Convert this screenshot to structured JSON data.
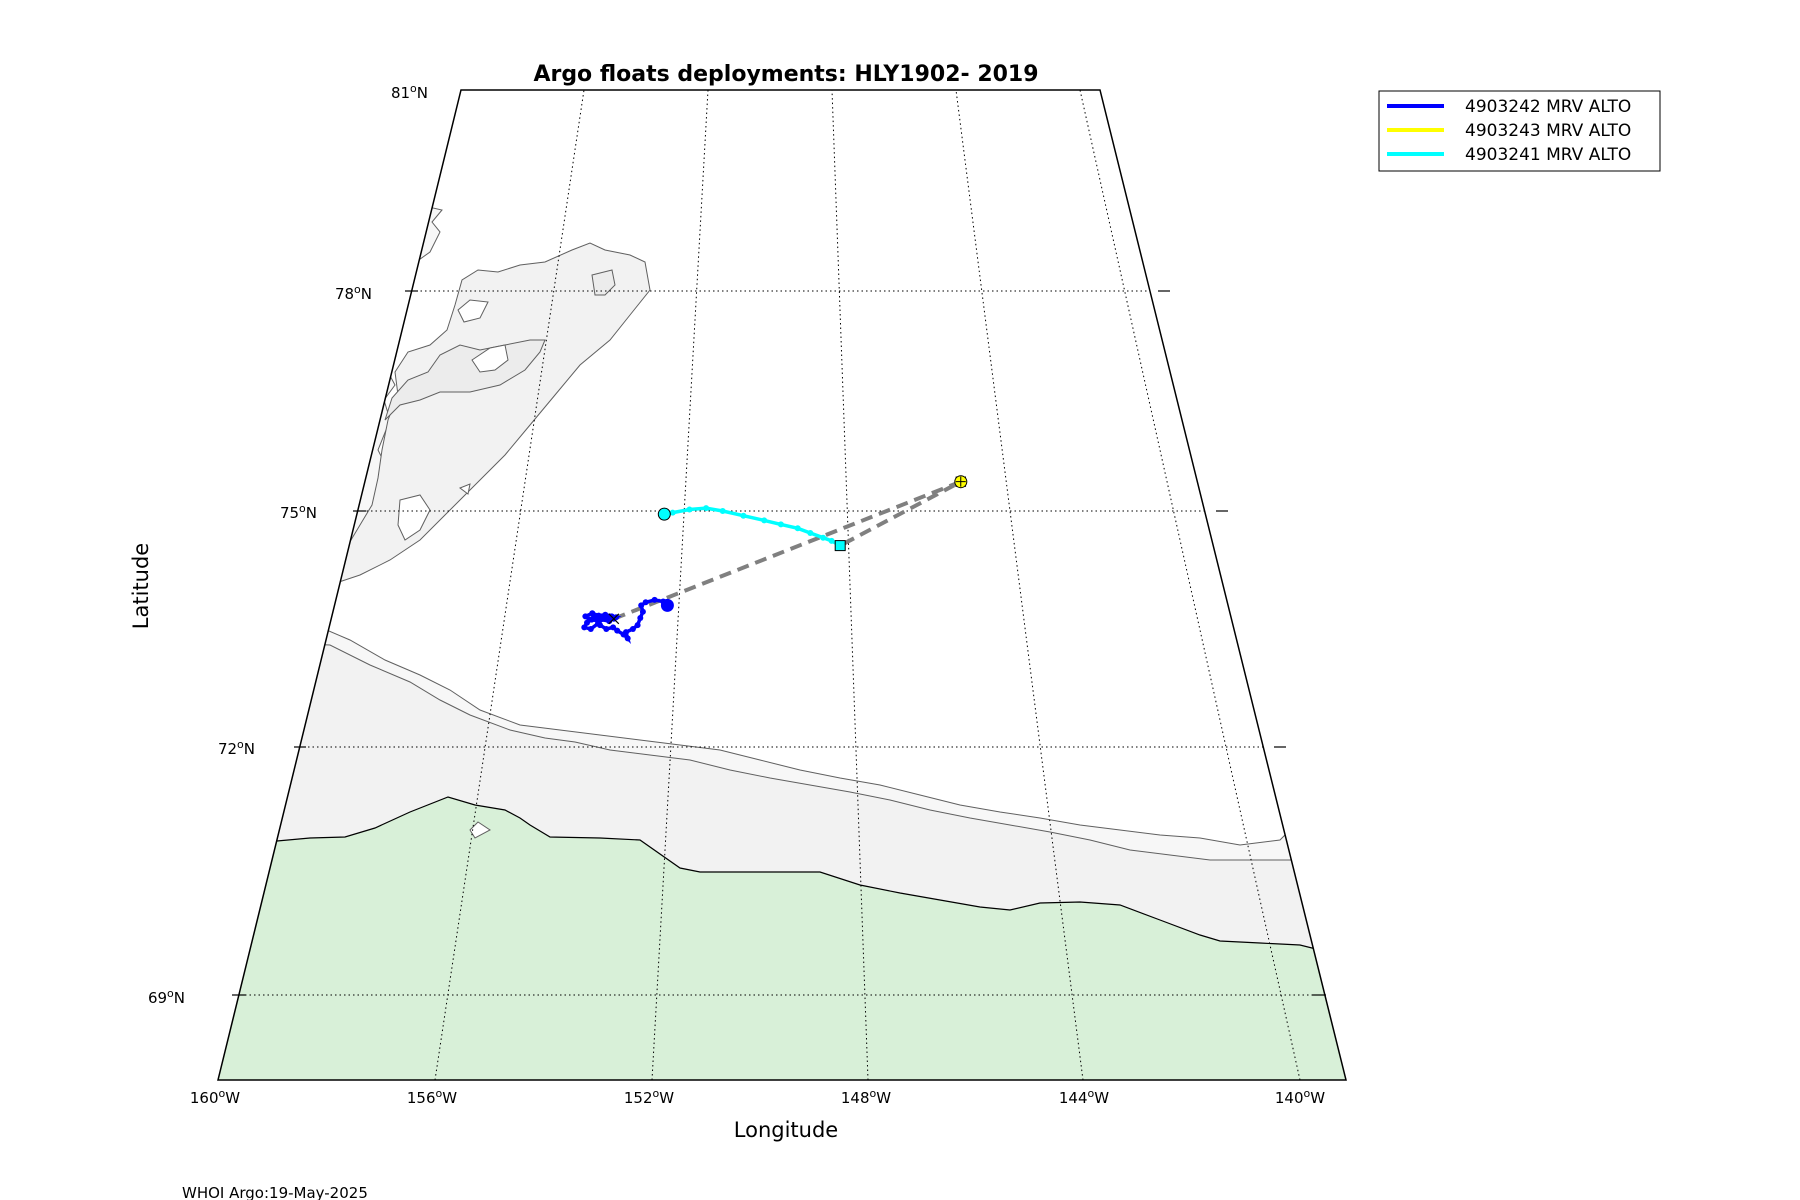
{
  "chart_data": {
    "type": "map",
    "title": "Argo floats deployments: HLY1902- 2019",
    "xlabel": "Longitude",
    "ylabel": "Latitude",
    "lon_range": [
      -160,
      -139
    ],
    "lat_range": [
      67.7,
      81
    ],
    "lat_ticks": [
      {
        "value": 81,
        "label": "81",
        "suffix": "N"
      },
      {
        "value": 78,
        "label": "78",
        "suffix": "N"
      },
      {
        "value": 75,
        "label": "75",
        "suffix": "N"
      },
      {
        "value": 72,
        "label": "72",
        "suffix": "N"
      },
      {
        "value": 69,
        "label": "69",
        "suffix": "N"
      }
    ],
    "lon_ticks": [
      {
        "value": -160,
        "label": "160",
        "suffix": "W"
      },
      {
        "value": -156,
        "label": "156",
        "suffix": "W"
      },
      {
        "value": -152,
        "label": "152",
        "suffix": "W"
      },
      {
        "value": -148,
        "label": "148",
        "suffix": "W"
      },
      {
        "value": -144,
        "label": "144",
        "suffix": "W"
      },
      {
        "value": -140,
        "label": "140",
        "suffix": "W"
      }
    ],
    "grid": true,
    "legend_position": "top-right",
    "series": [
      {
        "name": "4903242 MRV ALTO",
        "color": "#0000ff",
        "points": [
          [
            -152.4,
            73.8
          ],
          [
            -152.5,
            73.85
          ],
          [
            -152.7,
            73.87
          ],
          [
            -152.9,
            73.84
          ],
          [
            -153.0,
            73.8
          ],
          [
            -152.95,
            73.72
          ],
          [
            -153.0,
            73.64
          ],
          [
            -153.05,
            73.55
          ],
          [
            -153.15,
            73.5
          ],
          [
            -153.3,
            73.46
          ],
          [
            -153.25,
            73.38
          ],
          [
            -153.35,
            73.43
          ],
          [
            -153.5,
            73.48
          ],
          [
            -153.6,
            73.52
          ],
          [
            -153.75,
            73.5
          ],
          [
            -153.9,
            73.55
          ],
          [
            -153.95,
            73.6
          ],
          [
            -154.1,
            73.62
          ],
          [
            -154.2,
            73.58
          ],
          [
            -154.25,
            73.52
          ],
          [
            -154.1,
            73.5
          ],
          [
            -153.95,
            73.57
          ],
          [
            -153.85,
            73.63
          ],
          [
            -153.7,
            73.66
          ],
          [
            -153.55,
            73.65
          ],
          [
            -153.7,
            73.6
          ],
          [
            -153.9,
            73.62
          ],
          [
            -154.05,
            73.66
          ],
          [
            -154.15,
            73.62
          ],
          [
            -154.25,
            73.66
          ],
          [
            -154.1,
            73.7
          ],
          [
            -153.95,
            73.67
          ],
          [
            -153.8,
            73.68
          ],
          [
            -153.65,
            73.66
          ],
          [
            -153.6,
            73.63
          ]
        ],
        "start_marker": "circle",
        "end_marker": "x"
      },
      {
        "name": "4903243 MRV ALTO",
        "color": "#ffff00",
        "points": [
          [
            -145.4,
            75.4
          ]
        ],
        "start_marker": "circle",
        "end_marker": "x"
      },
      {
        "name": "4903241 MRV ALTO",
        "color": "#00ffff",
        "points": [
          [
            -152.6,
            74.96
          ],
          [
            -152.4,
            74.98
          ],
          [
            -152.0,
            75.02
          ],
          [
            -151.6,
            75.04
          ],
          [
            -151.2,
            75.0
          ],
          [
            -150.7,
            74.94
          ],
          [
            -150.2,
            74.88
          ],
          [
            -149.8,
            74.83
          ],
          [
            -149.4,
            74.78
          ],
          [
            -149.1,
            74.72
          ],
          [
            -148.8,
            74.66
          ],
          [
            -148.6,
            74.62
          ],
          [
            -148.4,
            74.56
          ]
        ],
        "start_marker": "circle",
        "end_marker": "square"
      }
    ],
    "cruise_track": {
      "color": "#808080",
      "style": "dashed",
      "points": [
        [
          -153.6,
          73.63
        ],
        [
          -145.4,
          75.4
        ],
        [
          -148.4,
          74.56
        ]
      ]
    },
    "colors": {
      "land": "#d8f0d8",
      "shelf": "#f2f2f2",
      "shelf_light": "#f7f7f7",
      "contour": "#606060",
      "grid": "#000000"
    }
  },
  "footer": {
    "text": "WHOI Argo:19-May-2025"
  }
}
